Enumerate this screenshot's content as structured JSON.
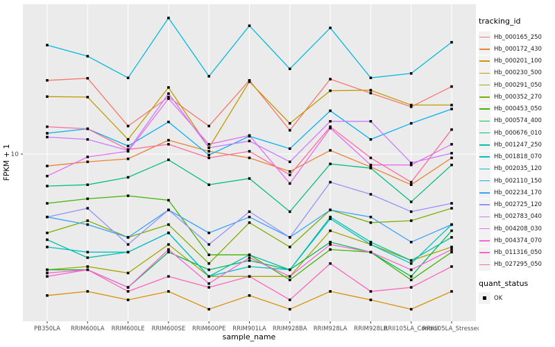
{
  "chart_data": {
    "type": "line",
    "title": "",
    "xlabel": "sample_name",
    "ylabel": "FPKM + 1",
    "y_scale": "log10",
    "y_ticks": [
      {
        "label": "10",
        "value": 10
      }
    ],
    "ylim_approx": [
      1.8,
      45
    ],
    "grid": "major-white-on-gray",
    "panel_bg": "#EBEBEB",
    "grid_color": "#FFFFFF",
    "axis_text_color": "#4D4D4D",
    "marker": {
      "shape": "square",
      "color": "#000000"
    },
    "categories": [
      "PB350LA",
      "RRIM600LA",
      "RRIM600LE",
      "RRIM600SE",
      "RRIM600PE",
      "RRIM901LA",
      "RRIM928BA",
      "RRIM928LA",
      "RRIM928LB",
      "RRII105LA_Control",
      "RRII105LA_Stressed"
    ],
    "legend": {
      "title": "tracking_id",
      "position": "right"
    },
    "quant_legend": {
      "title": "quant_status",
      "items": [
        {
          "label": "OK",
          "marker": "black-square"
        }
      ]
    },
    "series": [
      {
        "name": "Hb_000165_250",
        "color": "#F8766D",
        "values": [
          22.0,
          22.5,
          13.5,
          18.4,
          13.5,
          22.0,
          12.9,
          22.3,
          19.2,
          16.6,
          20.6
        ]
      },
      {
        "name": "Hb_000172_430",
        "color": "#EA8331",
        "values": [
          8.8,
          9.2,
          9.5,
          11.6,
          10.3,
          9.6,
          8.3,
          10.4,
          8.7,
          7.2,
          9.6
        ]
      },
      {
        "name": "Hb_000201_100",
        "color": "#D89000",
        "values": [
          2.2,
          2.3,
          2.1,
          2.3,
          1.9,
          2.2,
          1.9,
          2.3,
          2.1,
          1.9,
          2.3
        ]
      },
      {
        "name": "Hb_000230_500",
        "color": "#C09B00",
        "values": [
          18.5,
          18.4,
          11.7,
          20.4,
          10.7,
          21.7,
          13.9,
          19.7,
          19.8,
          16.9,
          16.9
        ]
      },
      {
        "name": "Hb_000291_050",
        "color": "#A3A500",
        "values": [
          2.9,
          3.0,
          2.8,
          3.8,
          2.7,
          2.7,
          2.7,
          4.4,
          3.8,
          3.2,
          3.7
        ]
      },
      {
        "name": "Hb_000352_270",
        "color": "#7CAE00",
        "values": [
          4.3,
          4.9,
          4.1,
          4.7,
          3.1,
          4.8,
          3.7,
          5.5,
          4.8,
          4.9,
          5.6
        ]
      },
      {
        "name": "Hb_000453_050",
        "color": "#39B600",
        "values": [
          5.9,
          6.2,
          6.4,
          6.1,
          3.4,
          3.4,
          2.6,
          3.6,
          3.5,
          2.6,
          3.5
        ]
      },
      {
        "name": "Hb_000574_400",
        "color": "#00BB4E",
        "values": [
          2.9,
          2.9,
          2.4,
          3.5,
          2.9,
          3.2,
          2.9,
          3.9,
          3.5,
          2.7,
          4.4
        ]
      },
      {
        "name": "Hb_000676_010",
        "color": "#00BF7D",
        "values": [
          7.1,
          7.2,
          7.8,
          9.4,
          7.2,
          7.7,
          5.4,
          9.0,
          8.6,
          6.0,
          8.9
        ]
      },
      {
        "name": "Hb_001247_250",
        "color": "#00C1A3",
        "values": [
          4.0,
          3.3,
          3.5,
          4.3,
          2.7,
          3.4,
          2.9,
          5.1,
          3.9,
          3.2,
          4.1
        ]
      },
      {
        "name": "Hb_001818_070",
        "color": "#00BFC4",
        "values": [
          3.7,
          3.5,
          3.5,
          4.3,
          2.7,
          3.0,
          2.9,
          5.0,
          3.8,
          3.1,
          4.7
        ]
      },
      {
        "name": "Hb_002035_120",
        "color": "#00BADE",
        "values": [
          32.1,
          28.5,
          22.6,
          42.9,
          23.0,
          39.5,
          24.9,
          38.6,
          22.6,
          23.7,
          33.1
        ]
      },
      {
        "name": "Hb_002110_150",
        "color": "#00B0F6",
        "values": [
          12.5,
          13.1,
          10.9,
          14.1,
          9.9,
          12.1,
          10.6,
          15.9,
          11.7,
          13.9,
          16.2
        ]
      },
      {
        "name": "Hb_002234_170",
        "color": "#35A2FF",
        "values": [
          5.1,
          4.7,
          4.1,
          5.5,
          4.3,
          5.1,
          4.1,
          5.5,
          5.1,
          3.9,
          4.7
        ]
      },
      {
        "name": "Hb_002725_120",
        "color": "#9590FF",
        "values": [
          5.1,
          5.6,
          3.8,
          5.5,
          3.8,
          5.4,
          4.1,
          7.4,
          6.5,
          5.4,
          5.9
        ]
      },
      {
        "name": "Hb_002783_040",
        "color": "#C77CFF",
        "values": [
          12.0,
          11.7,
          10.4,
          19.1,
          10.7,
          11.5,
          9.2,
          14.2,
          14.2,
          9.1,
          10.1
        ]
      },
      {
        "name": "Hb_004208_030",
        "color": "#E76BF3",
        "values": [
          7.9,
          9.7,
          10.3,
          18.1,
          11.1,
          12.2,
          7.3,
          13.2,
          8.9,
          8.9,
          11.1
        ]
      },
      {
        "name": "Hb_004374_070",
        "color": "#FA62DB",
        "values": [
          2.7,
          2.9,
          2.4,
          3.6,
          2.5,
          3.3,
          2.7,
          3.8,
          3.5,
          2.9,
          3.6
        ]
      },
      {
        "name": "Hb_011316_050",
        "color": "#FF62BC",
        "values": [
          2.8,
          2.9,
          2.3,
          2.7,
          2.4,
          2.7,
          2.1,
          3.1,
          2.3,
          2.4,
          3.0
        ]
      },
      {
        "name": "Hb_027295_050",
        "color": "#FF6A98",
        "values": [
          13.4,
          13.1,
          10.5,
          11.1,
          9.6,
          10.3,
          8.0,
          13.4,
          9.6,
          7.4,
          13.0
        ]
      }
    ]
  }
}
